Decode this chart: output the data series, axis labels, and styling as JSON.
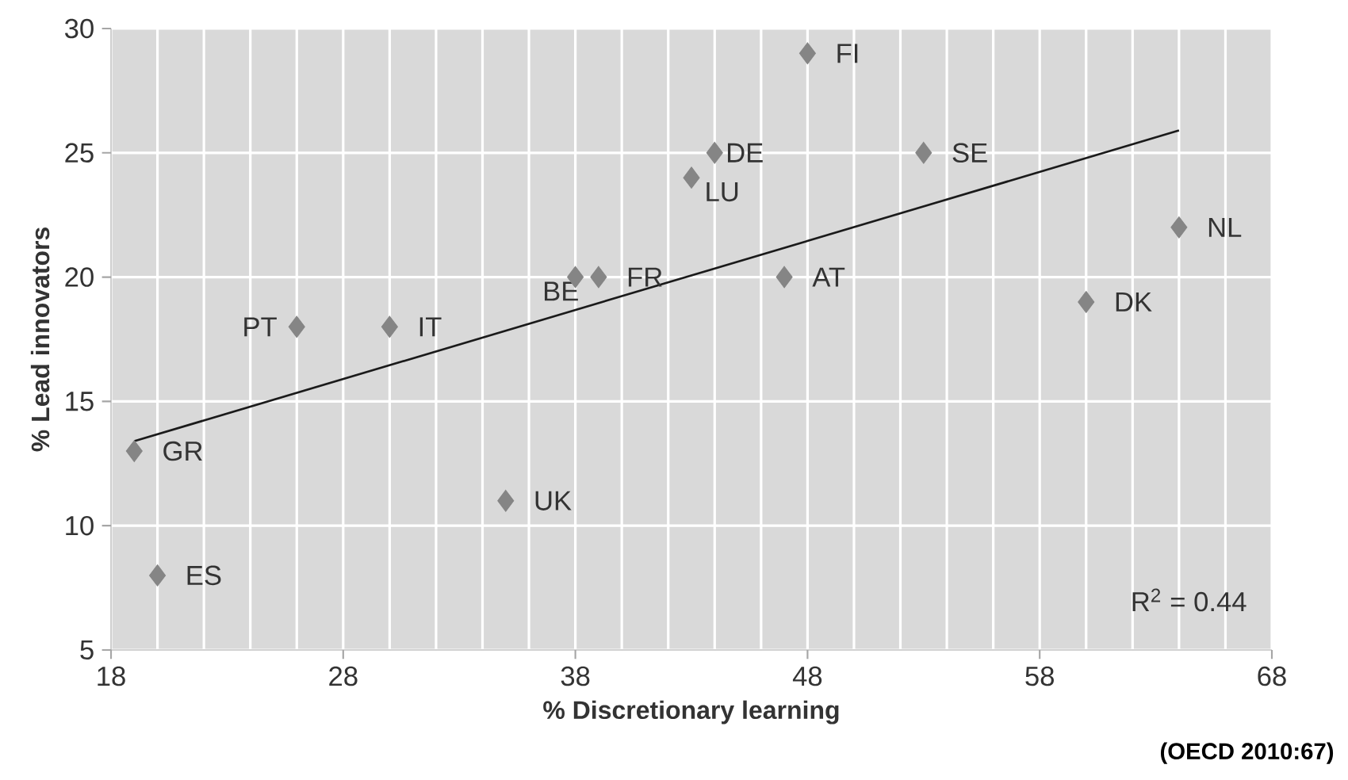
{
  "chart_data": {
    "type": "scatter",
    "xlabel": "% Discretionary learning",
    "ylabel": "% Lead innovators",
    "xlim": [
      18,
      68
    ],
    "xticks": [
      18,
      28,
      38,
      48,
      58,
      68
    ],
    "ylim": [
      5,
      30
    ],
    "yticks": [
      5,
      10,
      15,
      20,
      25,
      30
    ],
    "grid": true,
    "marker": "diamond",
    "series": [
      {
        "color": "#858585",
        "x": [
          19,
          20,
          26,
          30,
          35,
          38,
          39,
          43,
          44,
          48,
          47,
          53,
          60,
          64
        ],
        "values": [
          13,
          8,
          18,
          18,
          11,
          20,
          20,
          24,
          25,
          29,
          20,
          25,
          19,
          22
        ]
      },
      {
        "type": "line",
        "color": "#1a1a1a",
        "marker": "none",
        "x": [
          19,
          64
        ],
        "values": [
          13.4,
          25.9
        ]
      }
    ],
    "annotations": [
      {
        "text": "GR",
        "x": 19,
        "y": 13
      },
      {
        "text": "ES",
        "x": 20,
        "y": 8
      },
      {
        "text": "PT",
        "x": 26,
        "y": 18
      },
      {
        "text": "IT",
        "x": 30,
        "y": 18
      },
      {
        "text": "UK",
        "x": 35,
        "y": 11
      },
      {
        "text": "BE",
        "x": 38,
        "y": 20
      },
      {
        "text": "FR",
        "x": 39,
        "y": 20
      },
      {
        "text": "LU",
        "x": 43,
        "y": 24
      },
      {
        "text": "DE",
        "x": 44,
        "y": 25
      },
      {
        "text": "FI",
        "x": 48,
        "y": 29
      },
      {
        "text": "AT",
        "x": 47,
        "y": 20
      },
      {
        "text": "SE",
        "x": 53,
        "y": 25
      },
      {
        "text": "DK",
        "x": 60,
        "y": 19
      },
      {
        "text": "NL",
        "x": 64,
        "y": 22
      },
      "R$^{2}$ = 0.44",
      "(OECD 2010:67)"
    ]
  }
}
